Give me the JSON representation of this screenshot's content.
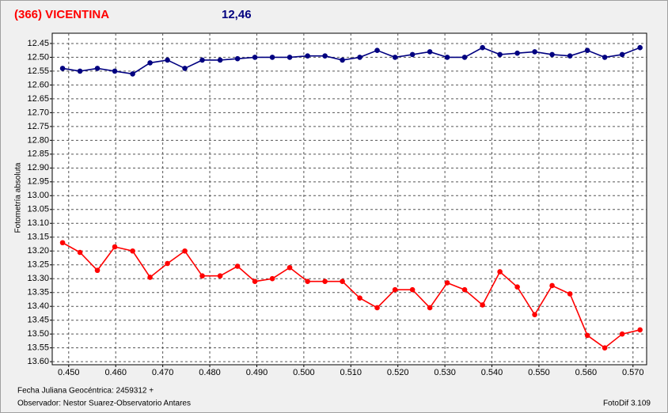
{
  "chart_data": {
    "type": "line",
    "title": "(366) VICENTINA",
    "subtitle": "12,46",
    "ylabel": "Fotometría absoluta",
    "notes": [
      "Fecha Juliana Geocéntrica: 2459312 +",
      "Observador: Nestor Suarez-Observatorio Antares"
    ],
    "credit": "FotoDif 3.109",
    "x": [
      0.4487,
      0.4524,
      0.4561,
      0.4598,
      0.4636,
      0.4673,
      0.471,
      0.4747,
      0.4784,
      0.4822,
      0.4859,
      0.4896,
      0.4933,
      0.497,
      0.5008,
      0.5045,
      0.5082,
      0.5119,
      0.5156,
      0.5194,
      0.5231,
      0.5268,
      0.5305,
      0.5342,
      0.538,
      0.5417,
      0.5454,
      0.5491,
      0.5528,
      0.5566,
      0.5603,
      0.564,
      0.5677,
      0.5715
    ],
    "series": [
      {
        "color": "#000080",
        "values": [
          12.54,
          12.55,
          12.54,
          12.55,
          12.56,
          12.52,
          12.51,
          12.54,
          12.51,
          12.51,
          12.505,
          12.5,
          12.5,
          12.5,
          12.495,
          12.495,
          12.51,
          12.5,
          12.475,
          12.5,
          12.49,
          12.48,
          12.5,
          12.5,
          12.465,
          12.49,
          12.485,
          12.48,
          12.49,
          12.495,
          12.475,
          12.5,
          12.49,
          12.465
        ]
      },
      {
        "color": "#ff0000",
        "values": [
          13.17,
          13.205,
          13.27,
          13.185,
          13.2,
          13.295,
          13.245,
          13.2,
          13.29,
          13.29,
          13.255,
          13.31,
          13.3,
          13.26,
          13.31,
          13.31,
          13.31,
          13.37,
          13.405,
          13.34,
          13.34,
          13.405,
          13.315,
          13.34,
          13.395,
          13.275,
          13.33,
          13.43,
          13.325,
          13.355,
          13.505,
          13.55,
          13.5,
          13.485
        ]
      }
    ],
    "xlim": [
      0.4465,
      0.5729
    ],
    "ylim": [
      13.611,
      12.413
    ],
    "xticks": [
      {
        "value": 0.45,
        "label": "0.450"
      },
      {
        "value": 0.46,
        "label": "0.460"
      },
      {
        "value": 0.47,
        "label": "0.470"
      },
      {
        "value": 0.48,
        "label": "0.480"
      },
      {
        "value": 0.49,
        "label": "0.490"
      },
      {
        "value": 0.5,
        "label": "0.500"
      },
      {
        "value": 0.51,
        "label": "0.510"
      },
      {
        "value": 0.52,
        "label": "0.520"
      },
      {
        "value": 0.53,
        "label": "0.530"
      },
      {
        "value": 0.54,
        "label": "0.540"
      },
      {
        "value": 0.55,
        "label": "0.550"
      },
      {
        "value": 0.56,
        "label": "0.560"
      },
      {
        "value": 0.57,
        "label": "0.570"
      }
    ],
    "yticks": [
      12.45,
      {
        "value": 12.5,
        "label": "12.50"
      },
      12.55,
      {
        "value": 12.6,
        "label": "12.60"
      },
      12.65,
      {
        "value": 12.7,
        "label": "12.70"
      },
      12.75,
      {
        "value": 12.8,
        "label": "12.80"
      },
      12.85,
      {
        "value": 12.9,
        "label": "12.90"
      },
      12.95,
      {
        "value": 13,
        "label": "13.00"
      },
      13.05,
      {
        "value": 13.1,
        "label": "13.10"
      },
      13.15,
      {
        "value": 13.2,
        "label": "13.20"
      },
      13.25,
      {
        "value": 13.3,
        "label": "13.30"
      },
      13.35,
      {
        "value": 13.4,
        "label": "13.40"
      },
      13.45,
      {
        "value": 13.5,
        "label": "13.50"
      },
      13.55,
      {
        "value": 13.6,
        "label": "13.60"
      }
    ],
    "grid": true
  }
}
